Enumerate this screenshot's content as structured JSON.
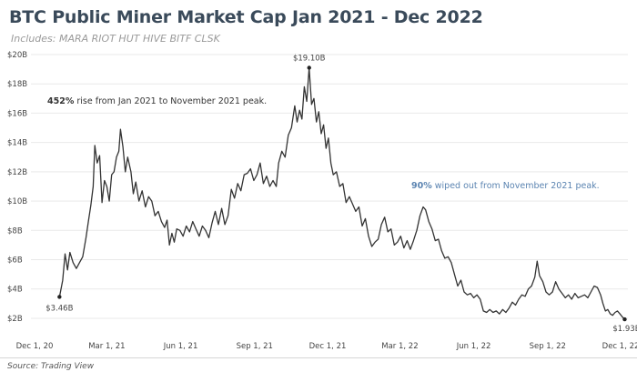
{
  "chart_data": {
    "type": "line",
    "title": "BTC Public Miner Market Cap Jan 2021 - Dec 2022",
    "subtitle": "Includes: MARA RIOT HUT HIVE BITF CLSK",
    "source": "Source: Trading View",
    "y_unit": "$B",
    "ylim": [
      1.5,
      20
    ],
    "y_ticks": [
      2,
      4,
      6,
      8,
      10,
      12,
      14,
      16,
      18,
      20
    ],
    "y_tick_labels": [
      "$2B",
      "$4B",
      "$6B",
      "$8B",
      "$10B",
      "$12B",
      "$14B",
      "$16B",
      "$18B",
      "$20B"
    ],
    "xlim": [
      "2020-12-01",
      "2022-12-10"
    ],
    "x_ticks": [
      "2020-12-01",
      "2021-03-01",
      "2021-06-01",
      "2021-09-01",
      "2021-12-01",
      "2022-03-01",
      "2022-06-01",
      "2022-09-01",
      "2022-12-01"
    ],
    "x_tick_labels": [
      "Dec 1, 20",
      "Mar 1, 21",
      "Jun 1, 21",
      "Sep 1, 21",
      "Dec 1, 21",
      "Mar 1, 22",
      "Jun 1, 22",
      "Sep 1, 22",
      "Dec 1, 22"
    ],
    "grid": "horizontal",
    "line_color": "#333333",
    "series": [
      {
        "points": [
          [
            "2021-01-01",
            3.46
          ],
          [
            "2021-01-05",
            4.6
          ],
          [
            "2021-01-08",
            6.4
          ],
          [
            "2021-01-11",
            5.3
          ],
          [
            "2021-01-14",
            6.5
          ],
          [
            "2021-01-18",
            5.8
          ],
          [
            "2021-01-22",
            5.4
          ],
          [
            "2021-01-26",
            5.8
          ],
          [
            "2021-01-30",
            6.2
          ],
          [
            "2021-02-03",
            7.5
          ],
          [
            "2021-02-06",
            8.6
          ],
          [
            "2021-02-09",
            9.7
          ],
          [
            "2021-02-12",
            11.0
          ],
          [
            "2021-02-14",
            13.8
          ],
          [
            "2021-02-17",
            12.6
          ],
          [
            "2021-02-20",
            13.1
          ],
          [
            "2021-02-23",
            9.9
          ],
          [
            "2021-02-26",
            11.4
          ],
          [
            "2021-03-01",
            11.0
          ],
          [
            "2021-03-04",
            10.0
          ],
          [
            "2021-03-07",
            11.8
          ],
          [
            "2021-03-10",
            12.0
          ],
          [
            "2021-03-13",
            13.0
          ],
          [
            "2021-03-16",
            13.4
          ],
          [
            "2021-03-18",
            14.9
          ],
          [
            "2021-03-21",
            13.7
          ],
          [
            "2021-03-24",
            12.0
          ],
          [
            "2021-03-27",
            13.0
          ],
          [
            "2021-03-31",
            12.0
          ],
          [
            "2021-04-03",
            10.5
          ],
          [
            "2021-04-06",
            11.3
          ],
          [
            "2021-04-10",
            10.0
          ],
          [
            "2021-04-14",
            10.7
          ],
          [
            "2021-04-18",
            9.6
          ],
          [
            "2021-04-22",
            10.3
          ],
          [
            "2021-04-26",
            10.0
          ],
          [
            "2021-04-30",
            9.0
          ],
          [
            "2021-05-04",
            9.3
          ],
          [
            "2021-05-08",
            8.6
          ],
          [
            "2021-05-12",
            8.2
          ],
          [
            "2021-05-15",
            8.7
          ],
          [
            "2021-05-18",
            7.0
          ],
          [
            "2021-05-21",
            7.8
          ],
          [
            "2021-05-24",
            7.2
          ],
          [
            "2021-05-27",
            8.1
          ],
          [
            "2021-05-31",
            8.0
          ],
          [
            "2021-06-04",
            7.6
          ],
          [
            "2021-06-08",
            8.3
          ],
          [
            "2021-06-12",
            7.9
          ],
          [
            "2021-06-16",
            8.6
          ],
          [
            "2021-06-20",
            8.1
          ],
          [
            "2021-06-24",
            7.6
          ],
          [
            "2021-06-28",
            8.3
          ],
          [
            "2021-07-02",
            8.0
          ],
          [
            "2021-07-06",
            7.5
          ],
          [
            "2021-07-10",
            8.5
          ],
          [
            "2021-07-14",
            9.3
          ],
          [
            "2021-07-18",
            8.4
          ],
          [
            "2021-07-22",
            9.5
          ],
          [
            "2021-07-26",
            8.4
          ],
          [
            "2021-07-30",
            9.0
          ],
          [
            "2021-08-03",
            10.8
          ],
          [
            "2021-08-07",
            10.2
          ],
          [
            "2021-08-11",
            11.2
          ],
          [
            "2021-08-15",
            10.7
          ],
          [
            "2021-08-19",
            11.8
          ],
          [
            "2021-08-23",
            11.9
          ],
          [
            "2021-08-27",
            12.2
          ],
          [
            "2021-08-31",
            11.4
          ],
          [
            "2021-09-04",
            11.8
          ],
          [
            "2021-09-08",
            12.6
          ],
          [
            "2021-09-12",
            11.2
          ],
          [
            "2021-09-16",
            11.7
          ],
          [
            "2021-09-20",
            11.0
          ],
          [
            "2021-09-24",
            11.4
          ],
          [
            "2021-09-28",
            11.0
          ],
          [
            "2021-10-01",
            12.6
          ],
          [
            "2021-10-05",
            13.4
          ],
          [
            "2021-10-09",
            13.0
          ],
          [
            "2021-10-13",
            14.5
          ],
          [
            "2021-10-17",
            15.0
          ],
          [
            "2021-10-21",
            16.5
          ],
          [
            "2021-10-24",
            15.4
          ],
          [
            "2021-10-27",
            16.2
          ],
          [
            "2021-10-30",
            15.6
          ],
          [
            "2021-11-02",
            17.8
          ],
          [
            "2021-11-05",
            16.8
          ],
          [
            "2021-11-08",
            19.1
          ],
          [
            "2021-11-11",
            16.6
          ],
          [
            "2021-11-14",
            17.0
          ],
          [
            "2021-11-17",
            15.4
          ],
          [
            "2021-11-20",
            16.1
          ],
          [
            "2021-11-23",
            14.6
          ],
          [
            "2021-11-26",
            15.2
          ],
          [
            "2021-11-29",
            13.6
          ],
          [
            "2021-12-02",
            14.3
          ],
          [
            "2021-12-05",
            12.6
          ],
          [
            "2021-12-08",
            11.8
          ],
          [
            "2021-12-12",
            12.0
          ],
          [
            "2021-12-16",
            11.0
          ],
          [
            "2021-12-20",
            11.2
          ],
          [
            "2021-12-24",
            9.9
          ],
          [
            "2021-12-28",
            10.3
          ],
          [
            "2022-01-01",
            9.8
          ],
          [
            "2022-01-05",
            9.3
          ],
          [
            "2022-01-09",
            9.6
          ],
          [
            "2022-01-13",
            8.3
          ],
          [
            "2022-01-17",
            8.8
          ],
          [
            "2022-01-21",
            7.6
          ],
          [
            "2022-01-25",
            6.9
          ],
          [
            "2022-01-29",
            7.2
          ],
          [
            "2022-02-02",
            7.4
          ],
          [
            "2022-02-06",
            8.4
          ],
          [
            "2022-02-10",
            8.9
          ],
          [
            "2022-02-14",
            7.9
          ],
          [
            "2022-02-18",
            8.1
          ],
          [
            "2022-02-22",
            7.0
          ],
          [
            "2022-02-26",
            7.2
          ],
          [
            "2022-03-02",
            7.6
          ],
          [
            "2022-03-06",
            6.8
          ],
          [
            "2022-03-10",
            7.3
          ],
          [
            "2022-03-14",
            6.7
          ],
          [
            "2022-03-18",
            7.3
          ],
          [
            "2022-03-22",
            8.0
          ],
          [
            "2022-03-26",
            9.0
          ],
          [
            "2022-03-30",
            9.6
          ],
          [
            "2022-04-02",
            9.4
          ],
          [
            "2022-04-06",
            8.6
          ],
          [
            "2022-04-10",
            8.1
          ],
          [
            "2022-04-14",
            7.3
          ],
          [
            "2022-04-18",
            7.4
          ],
          [
            "2022-04-22",
            6.6
          ],
          [
            "2022-04-26",
            6.1
          ],
          [
            "2022-04-30",
            6.2
          ],
          [
            "2022-05-04",
            5.8
          ],
          [
            "2022-05-08",
            5.0
          ],
          [
            "2022-05-12",
            4.2
          ],
          [
            "2022-05-16",
            4.6
          ],
          [
            "2022-05-20",
            3.8
          ],
          [
            "2022-05-24",
            3.6
          ],
          [
            "2022-05-28",
            3.7
          ],
          [
            "2022-06-01",
            3.4
          ],
          [
            "2022-06-05",
            3.6
          ],
          [
            "2022-06-09",
            3.3
          ],
          [
            "2022-06-13",
            2.5
          ],
          [
            "2022-06-17",
            2.4
          ],
          [
            "2022-06-21",
            2.6
          ],
          [
            "2022-06-25",
            2.4
          ],
          [
            "2022-06-29",
            2.5
          ],
          [
            "2022-07-03",
            2.3
          ],
          [
            "2022-07-07",
            2.6
          ],
          [
            "2022-07-11",
            2.4
          ],
          [
            "2022-07-15",
            2.7
          ],
          [
            "2022-07-19",
            3.1
          ],
          [
            "2022-07-23",
            2.9
          ],
          [
            "2022-07-27",
            3.3
          ],
          [
            "2022-07-31",
            3.6
          ],
          [
            "2022-08-04",
            3.5
          ],
          [
            "2022-08-08",
            4.0
          ],
          [
            "2022-08-12",
            4.2
          ],
          [
            "2022-08-16",
            4.8
          ],
          [
            "2022-08-19",
            5.9
          ],
          [
            "2022-08-22",
            4.9
          ],
          [
            "2022-08-26",
            4.5
          ],
          [
            "2022-08-30",
            3.8
          ],
          [
            "2022-09-03",
            3.6
          ],
          [
            "2022-09-07",
            3.8
          ],
          [
            "2022-09-11",
            4.5
          ],
          [
            "2022-09-15",
            4.0
          ],
          [
            "2022-09-19",
            3.7
          ],
          [
            "2022-09-23",
            3.4
          ],
          [
            "2022-09-27",
            3.6
          ],
          [
            "2022-10-01",
            3.3
          ],
          [
            "2022-10-05",
            3.7
          ],
          [
            "2022-10-09",
            3.4
          ],
          [
            "2022-10-13",
            3.5
          ],
          [
            "2022-10-17",
            3.6
          ],
          [
            "2022-10-21",
            3.4
          ],
          [
            "2022-10-25",
            3.8
          ],
          [
            "2022-10-29",
            4.2
          ],
          [
            "2022-11-02",
            4.1
          ],
          [
            "2022-11-06",
            3.6
          ],
          [
            "2022-11-09",
            3.0
          ],
          [
            "2022-11-12",
            2.5
          ],
          [
            "2022-11-15",
            2.6
          ],
          [
            "2022-11-18",
            2.3
          ],
          [
            "2022-11-21",
            2.2
          ],
          [
            "2022-11-24",
            2.4
          ],
          [
            "2022-11-27",
            2.5
          ],
          [
            "2022-11-30",
            2.3
          ],
          [
            "2022-12-03",
            2.1
          ],
          [
            "2022-12-06",
            1.93
          ]
        ]
      }
    ],
    "data_labels": [
      {
        "text": "$3.46B",
        "date": "2021-01-01",
        "value": 3.46
      },
      {
        "text": "$19.10B",
        "date": "2021-11-08",
        "value": 19.1
      },
      {
        "text": "$1.93B",
        "date": "2022-12-06",
        "value": 1.93
      }
    ],
    "annotations": [
      {
        "bold": "452%",
        "rest": " rise from Jan 2021 to November 2021 peak.",
        "color": "#333333"
      },
      {
        "bold": "90%",
        "rest": " wiped out from November 2021 peak.",
        "color": "#5b84b1"
      }
    ]
  }
}
